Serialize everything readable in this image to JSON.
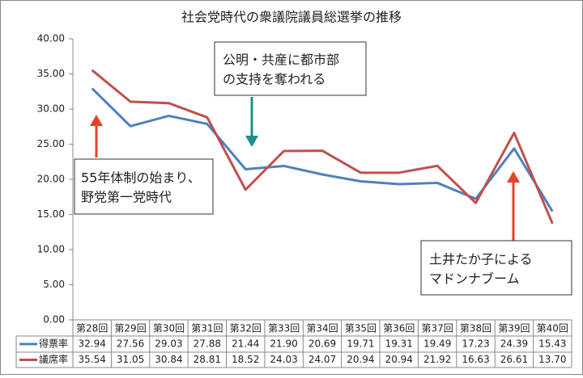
{
  "chart_data": {
    "type": "line",
    "title": "社会党時代の衆議院議員総選挙の推移",
    "categories": [
      "第28回",
      "第29回",
      "第30回",
      "第31回",
      "第32回",
      "第33回",
      "第34回",
      "第35回",
      "第36回",
      "第37回",
      "第38回",
      "第39回",
      "第40回"
    ],
    "series": [
      {
        "name": "得票率",
        "color": "#4f81bd",
        "values": [
          32.94,
          27.56,
          29.03,
          27.88,
          21.44,
          21.9,
          20.69,
          19.71,
          19.31,
          19.49,
          17.23,
          24.39,
          15.43
        ],
        "value_labels": [
          "32.94",
          "27.56",
          "29.03",
          "27.88",
          "21.44",
          "21.90",
          "20.69",
          "19.71",
          "19.31",
          "19.49",
          "17.23",
          "24.39",
          "15.43"
        ]
      },
      {
        "name": "議席率",
        "color": "#c0504d",
        "values": [
          35.54,
          31.05,
          30.84,
          28.81,
          18.52,
          24.03,
          24.07,
          20.94,
          20.94,
          21.92,
          16.63,
          26.61,
          13.7
        ],
        "value_labels": [
          "35.54",
          "31.05",
          "30.84",
          "28.81",
          "18.52",
          "24.03",
          "24.07",
          "20.94",
          "20.94",
          "21.92",
          "16.63",
          "26.61",
          "13.70"
        ]
      }
    ],
    "ylim": [
      0,
      40
    ],
    "yticks": [
      {
        "value": 0,
        "label": "0.00"
      },
      {
        "value": 5,
        "label": "5.00"
      },
      {
        "value": 10,
        "label": "10.00"
      },
      {
        "value": 15,
        "label": "15.00"
      },
      {
        "value": 20,
        "label": "20.00"
      },
      {
        "value": 25,
        "label": "25.00"
      },
      {
        "value": 30,
        "label": "30.00"
      },
      {
        "value": 35,
        "label": "35.00"
      },
      {
        "value": 40,
        "label": "40.00"
      }
    ],
    "annotations": [
      {
        "lines": [
          "55年体制の始まり、",
          "野党第一党時代"
        ]
      },
      {
        "lines": [
          "公明・共産に都市部",
          "の支持を奪われる"
        ]
      },
      {
        "lines": [
          "土井たか子による",
          "マドンナブーム"
        ]
      }
    ]
  }
}
